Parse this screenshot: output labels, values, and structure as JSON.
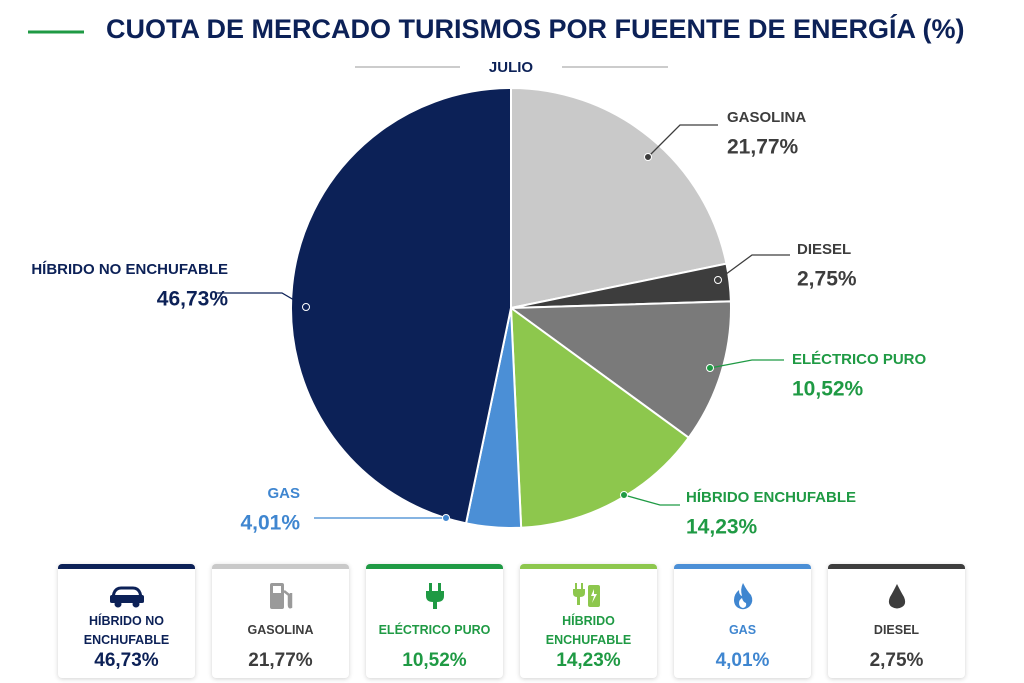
{
  "chart_data": {
    "type": "pie",
    "title": "CUOTA DE MERCADO TURISMOS POR FUEENTE DE ENERGÍA (%)",
    "subtitle": "JULIO",
    "categories": [
      "GASOLINA",
      "DIESEL",
      "ELÉCTRICO PURO",
      "HÍBRIDO ENCHUFABLE",
      "GAS",
      "HÍBRIDO NO ENCHUFABLE"
    ],
    "values": [
      21.77,
      2.75,
      10.52,
      14.23,
      4.01,
      46.73
    ],
    "value_labels": [
      "21,77%",
      "2,75%",
      "10,52%",
      "14,23%",
      "4,01%",
      "46,73%"
    ],
    "colors": [
      "#c9c9c9",
      "#3d3d3d",
      "#7a7a7a",
      "#8dc74d",
      "#4b8fd6",
      "#0c2157"
    ],
    "label_colors": [
      "#3d3d3d",
      "#3d3d3d",
      "#1f9a44",
      "#1f9a44",
      "#3f86d0",
      "#0c2157"
    ]
  }
}
